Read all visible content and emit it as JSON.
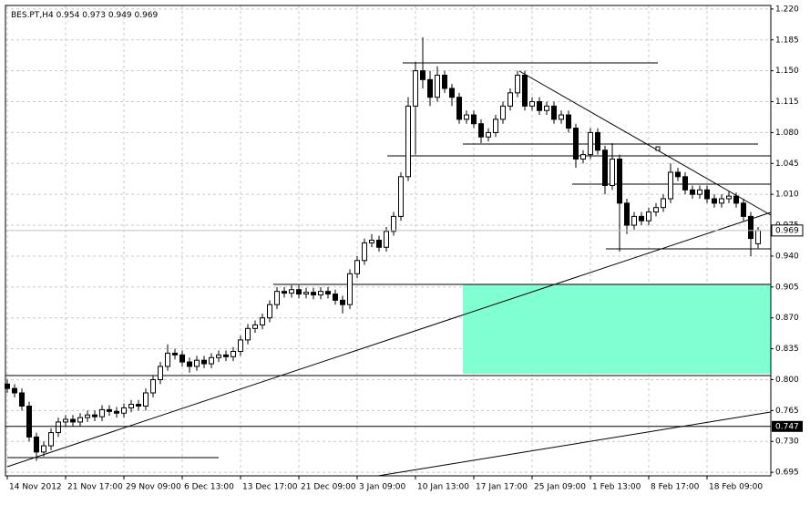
{
  "chart_data": {
    "type": "candlestick",
    "title": "BES.PT,H4",
    "open": [
      0.795,
      0.79,
      0.785,
      0.77,
      0.735,
      0.718,
      0.725,
      0.74,
      0.752,
      0.755,
      0.752,
      0.757,
      0.76,
      0.758,
      0.766,
      0.764,
      0.762,
      0.768,
      0.772,
      0.77,
      0.785,
      0.8,
      0.815,
      0.83,
      0.828,
      0.82,
      0.815,
      0.822,
      0.818,
      0.825,
      0.828,
      0.826,
      0.832,
      0.845,
      0.858,
      0.862,
      0.87,
      0.885,
      0.9,
      0.898,
      0.902,
      0.897,
      0.899,
      0.896,
      0.9,
      0.897,
      0.89,
      0.885,
      0.92,
      0.935,
      0.955,
      0.958,
      0.95,
      0.968,
      0.985,
      1.03,
      1.11,
      1.15,
      1.14,
      1.12,
      1.145,
      1.13,
      1.12,
      1.095,
      1.1,
      1.09,
      1.075,
      1.08,
      1.095,
      1.11,
      1.125,
      1.145,
      1.11,
      1.115,
      1.105,
      1.11,
      1.095,
      1.1,
      1.085,
      1.05,
      1.055,
      1.08,
      1.06,
      1.02,
      1.05,
      1.0,
      0.975,
      0.985,
      0.98,
      0.99,
      0.995,
      1.005,
      1.035,
      1.03,
      1.015,
      1.01,
      1.015,
      1.005,
      1.0,
      1.005,
      1.008,
      1.0,
      0.985,
      0.954
    ],
    "high": [
      0.8,
      0.795,
      0.79,
      0.775,
      0.74,
      0.73,
      0.745,
      0.757,
      0.76,
      0.76,
      0.762,
      0.765,
      0.765,
      0.771,
      0.771,
      0.769,
      0.773,
      0.777,
      0.777,
      0.79,
      0.805,
      0.82,
      0.84,
      0.835,
      0.833,
      0.825,
      0.827,
      0.827,
      0.83,
      0.833,
      0.833,
      0.837,
      0.85,
      0.863,
      0.867,
      0.875,
      0.89,
      0.905,
      0.905,
      0.907,
      0.907,
      0.904,
      0.904,
      0.905,
      0.905,
      0.902,
      0.895,
      0.925,
      0.94,
      0.96,
      0.965,
      0.963,
      0.973,
      0.99,
      1.035,
      1.12,
      1.16,
      1.188,
      1.15,
      1.155,
      1.15,
      1.135,
      1.125,
      1.105,
      1.105,
      1.095,
      1.085,
      1.1,
      1.115,
      1.13,
      1.15,
      1.15,
      1.12,
      1.12,
      1.115,
      1.115,
      1.105,
      1.105,
      1.09,
      1.06,
      1.085,
      1.085,
      1.065,
      1.068,
      1.055,
      1.005,
      0.99,
      0.99,
      0.995,
      1.0,
      1.01,
      1.045,
      1.04,
      1.035,
      1.02,
      1.02,
      1.02,
      1.01,
      1.01,
      1.013,
      1.012,
      1.005,
      0.99,
      0.973
    ],
    "low": [
      0.785,
      0.78,
      0.765,
      0.73,
      0.708,
      0.713,
      0.72,
      0.735,
      0.747,
      0.747,
      0.747,
      0.752,
      0.753,
      0.753,
      0.759,
      0.757,
      0.757,
      0.763,
      0.765,
      0.765,
      0.78,
      0.795,
      0.81,
      0.823,
      0.815,
      0.808,
      0.81,
      0.813,
      0.813,
      0.82,
      0.821,
      0.821,
      0.827,
      0.84,
      0.853,
      0.857,
      0.865,
      0.88,
      0.893,
      0.893,
      0.892,
      0.892,
      0.891,
      0.891,
      0.892,
      0.885,
      0.875,
      0.88,
      0.915,
      0.93,
      0.95,
      0.945,
      0.945,
      0.963,
      0.98,
      1.025,
      1.055,
      1.13,
      1.11,
      1.115,
      1.125,
      1.11,
      1.09,
      1.09,
      1.085,
      1.068,
      1.07,
      1.075,
      1.09,
      1.105,
      1.12,
      1.105,
      1.105,
      1.1,
      1.1,
      1.09,
      1.09,
      1.08,
      1.04,
      1.045,
      1.05,
      1.055,
      1.01,
      1.015,
      0.945,
      0.965,
      0.97,
      0.975,
      0.975,
      0.985,
      0.99,
      1.0,
      1.025,
      1.01,
      1.005,
      1.005,
      1.0,
      0.995,
      0.995,
      1.0,
      0.995,
      0.98,
      0.94,
      0.949
    ],
    "close": [
      0.79,
      0.785,
      0.77,
      0.735,
      0.718,
      0.725,
      0.74,
      0.752,
      0.755,
      0.752,
      0.757,
      0.76,
      0.758,
      0.766,
      0.764,
      0.762,
      0.768,
      0.772,
      0.77,
      0.785,
      0.8,
      0.815,
      0.83,
      0.828,
      0.82,
      0.815,
      0.822,
      0.818,
      0.825,
      0.828,
      0.826,
      0.832,
      0.845,
      0.858,
      0.862,
      0.87,
      0.885,
      0.9,
      0.898,
      0.902,
      0.897,
      0.899,
      0.896,
      0.9,
      0.897,
      0.89,
      0.885,
      0.92,
      0.935,
      0.955,
      0.958,
      0.95,
      0.968,
      0.985,
      1.03,
      1.11,
      1.15,
      1.14,
      1.12,
      1.145,
      1.13,
      1.12,
      1.095,
      1.1,
      1.09,
      1.075,
      1.08,
      1.095,
      1.11,
      1.125,
      1.145,
      1.11,
      1.115,
      1.105,
      1.11,
      1.095,
      1.1,
      1.085,
      1.05,
      1.055,
      1.08,
      1.06,
      1.02,
      1.05,
      1.0,
      0.975,
      0.985,
      0.98,
      0.99,
      0.995,
      1.005,
      1.035,
      1.03,
      1.015,
      1.01,
      1.015,
      1.005,
      1.0,
      1.005,
      1.008,
      1.0,
      0.985,
      0.96,
      0.969
    ],
    "colors": {
      "up": "#ffffff",
      "down": "#000000",
      "wick": "#000000"
    },
    "xticks": [
      {
        "value": 0,
        "label": "14 Nov 2012"
      },
      {
        "value": 8,
        "label": "21 Nov 17:00"
      },
      {
        "value": 16,
        "label": "29 Nov 09:00"
      },
      {
        "value": 24,
        "label": "6 Dec 13:00"
      },
      {
        "value": 32,
        "label": "13 Dec 17:00"
      },
      {
        "value": 40,
        "label": "21 Dec 09:00"
      },
      {
        "value": 48,
        "label": "3 Jan 09:00"
      },
      {
        "value": 56,
        "label": "10 Jan 13:00"
      },
      {
        "value": 64,
        "label": "17 Jan 17:00"
      },
      {
        "value": 72,
        "label": "25 Jan 09:00"
      },
      {
        "value": 80,
        "label": "1 Feb 13:00"
      },
      {
        "value": 88,
        "label": "8 Feb 17:00"
      },
      {
        "value": 96,
        "label": "18 Feb 09:00"
      }
    ],
    "ylim": [
      0.691,
      1.224
    ],
    "yticks": [
      {
        "value": 1.22,
        "label": "1.220"
      },
      1.185,
      {
        "value": 1.15,
        "label": "1.150"
      },
      1.115,
      {
        "value": 1.08,
        "label": "1.080"
      },
      1.045,
      {
        "value": 1.01,
        "label": "1.010"
      },
      0.975,
      {
        "value": 0.94,
        "label": "0.940"
      },
      0.905,
      {
        "value": 0.87,
        "label": "0.870"
      },
      0.835,
      {
        "value": 0.8,
        "label": "0.800"
      },
      0.765,
      {
        "value": 0.73,
        "label": "0.730"
      },
      0.695
    ],
    "price_lines": [
      0.747
    ],
    "grid": true
  }
}
